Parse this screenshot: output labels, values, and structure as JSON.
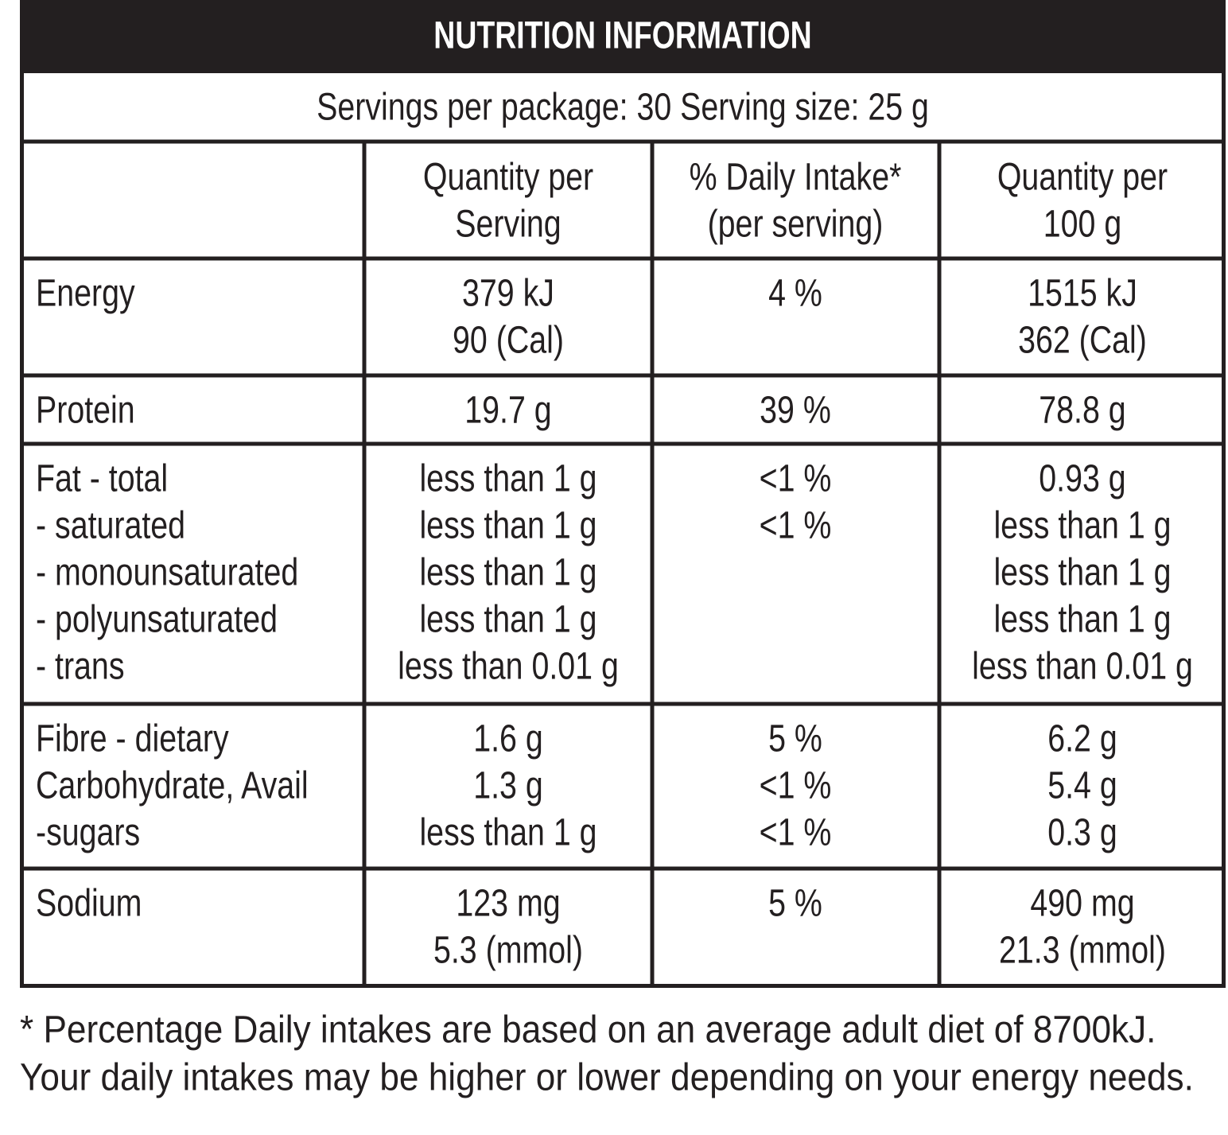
{
  "header": {
    "title": "NUTRITION INFORMATION",
    "servings": "Servings per package: 30  Serving size: 25 g"
  },
  "columns": [
    [
      "Quantity per",
      "Serving"
    ],
    [
      "% Daily Intake*",
      "(per serving)"
    ],
    [
      "Quantity per",
      "100 g"
    ]
  ],
  "rows": [
    {
      "labels": [
        "Energy"
      ],
      "per_serving": [
        "379 kJ",
        "90 (Cal)"
      ],
      "daily_intake": [
        "4 %"
      ],
      "per_100g": [
        "1515 kJ",
        "362 (Cal)"
      ]
    },
    {
      "labels": [
        "Protein"
      ],
      "per_serving": [
        "19.7 g"
      ],
      "daily_intake": [
        "39 %"
      ],
      "per_100g": [
        "78.8 g"
      ]
    },
    {
      "labels": [
        "Fat - total",
        "- saturated",
        "- monounsaturated",
        "- polyunsaturated",
        "- trans"
      ],
      "per_serving": [
        "less than 1 g",
        "less than 1 g",
        "less than 1 g",
        "less than 1 g",
        "less than 0.01 g"
      ],
      "daily_intake": [
        "<1 %",
        "<1 %"
      ],
      "per_100g": [
        "0.93 g",
        "less than 1 g",
        "less than 1 g",
        "less than 1 g",
        "less than 0.01 g"
      ]
    },
    {
      "labels": [
        "Fibre - dietary",
        "Carbohydrate, Avail",
        "-sugars"
      ],
      "per_serving": [
        "1.6 g",
        "1.3 g",
        "less than 1 g"
      ],
      "daily_intake": [
        "5 %",
        "<1 %",
        "<1 %"
      ],
      "per_100g": [
        "6.2 g",
        "5.4 g",
        "0.3 g"
      ]
    },
    {
      "labels": [
        "Sodium"
      ],
      "per_serving": [
        "123 mg",
        "5.3 (mmol)"
      ],
      "daily_intake": [
        "5 %"
      ],
      "per_100g": [
        "490 mg",
        "21.3 (mmol)"
      ]
    }
  ],
  "footnote": [
    "* Percentage Daily intakes are based on an average adult diet of 8700kJ.",
    "Your daily intakes may be higher or lower depending on your energy needs."
  ]
}
